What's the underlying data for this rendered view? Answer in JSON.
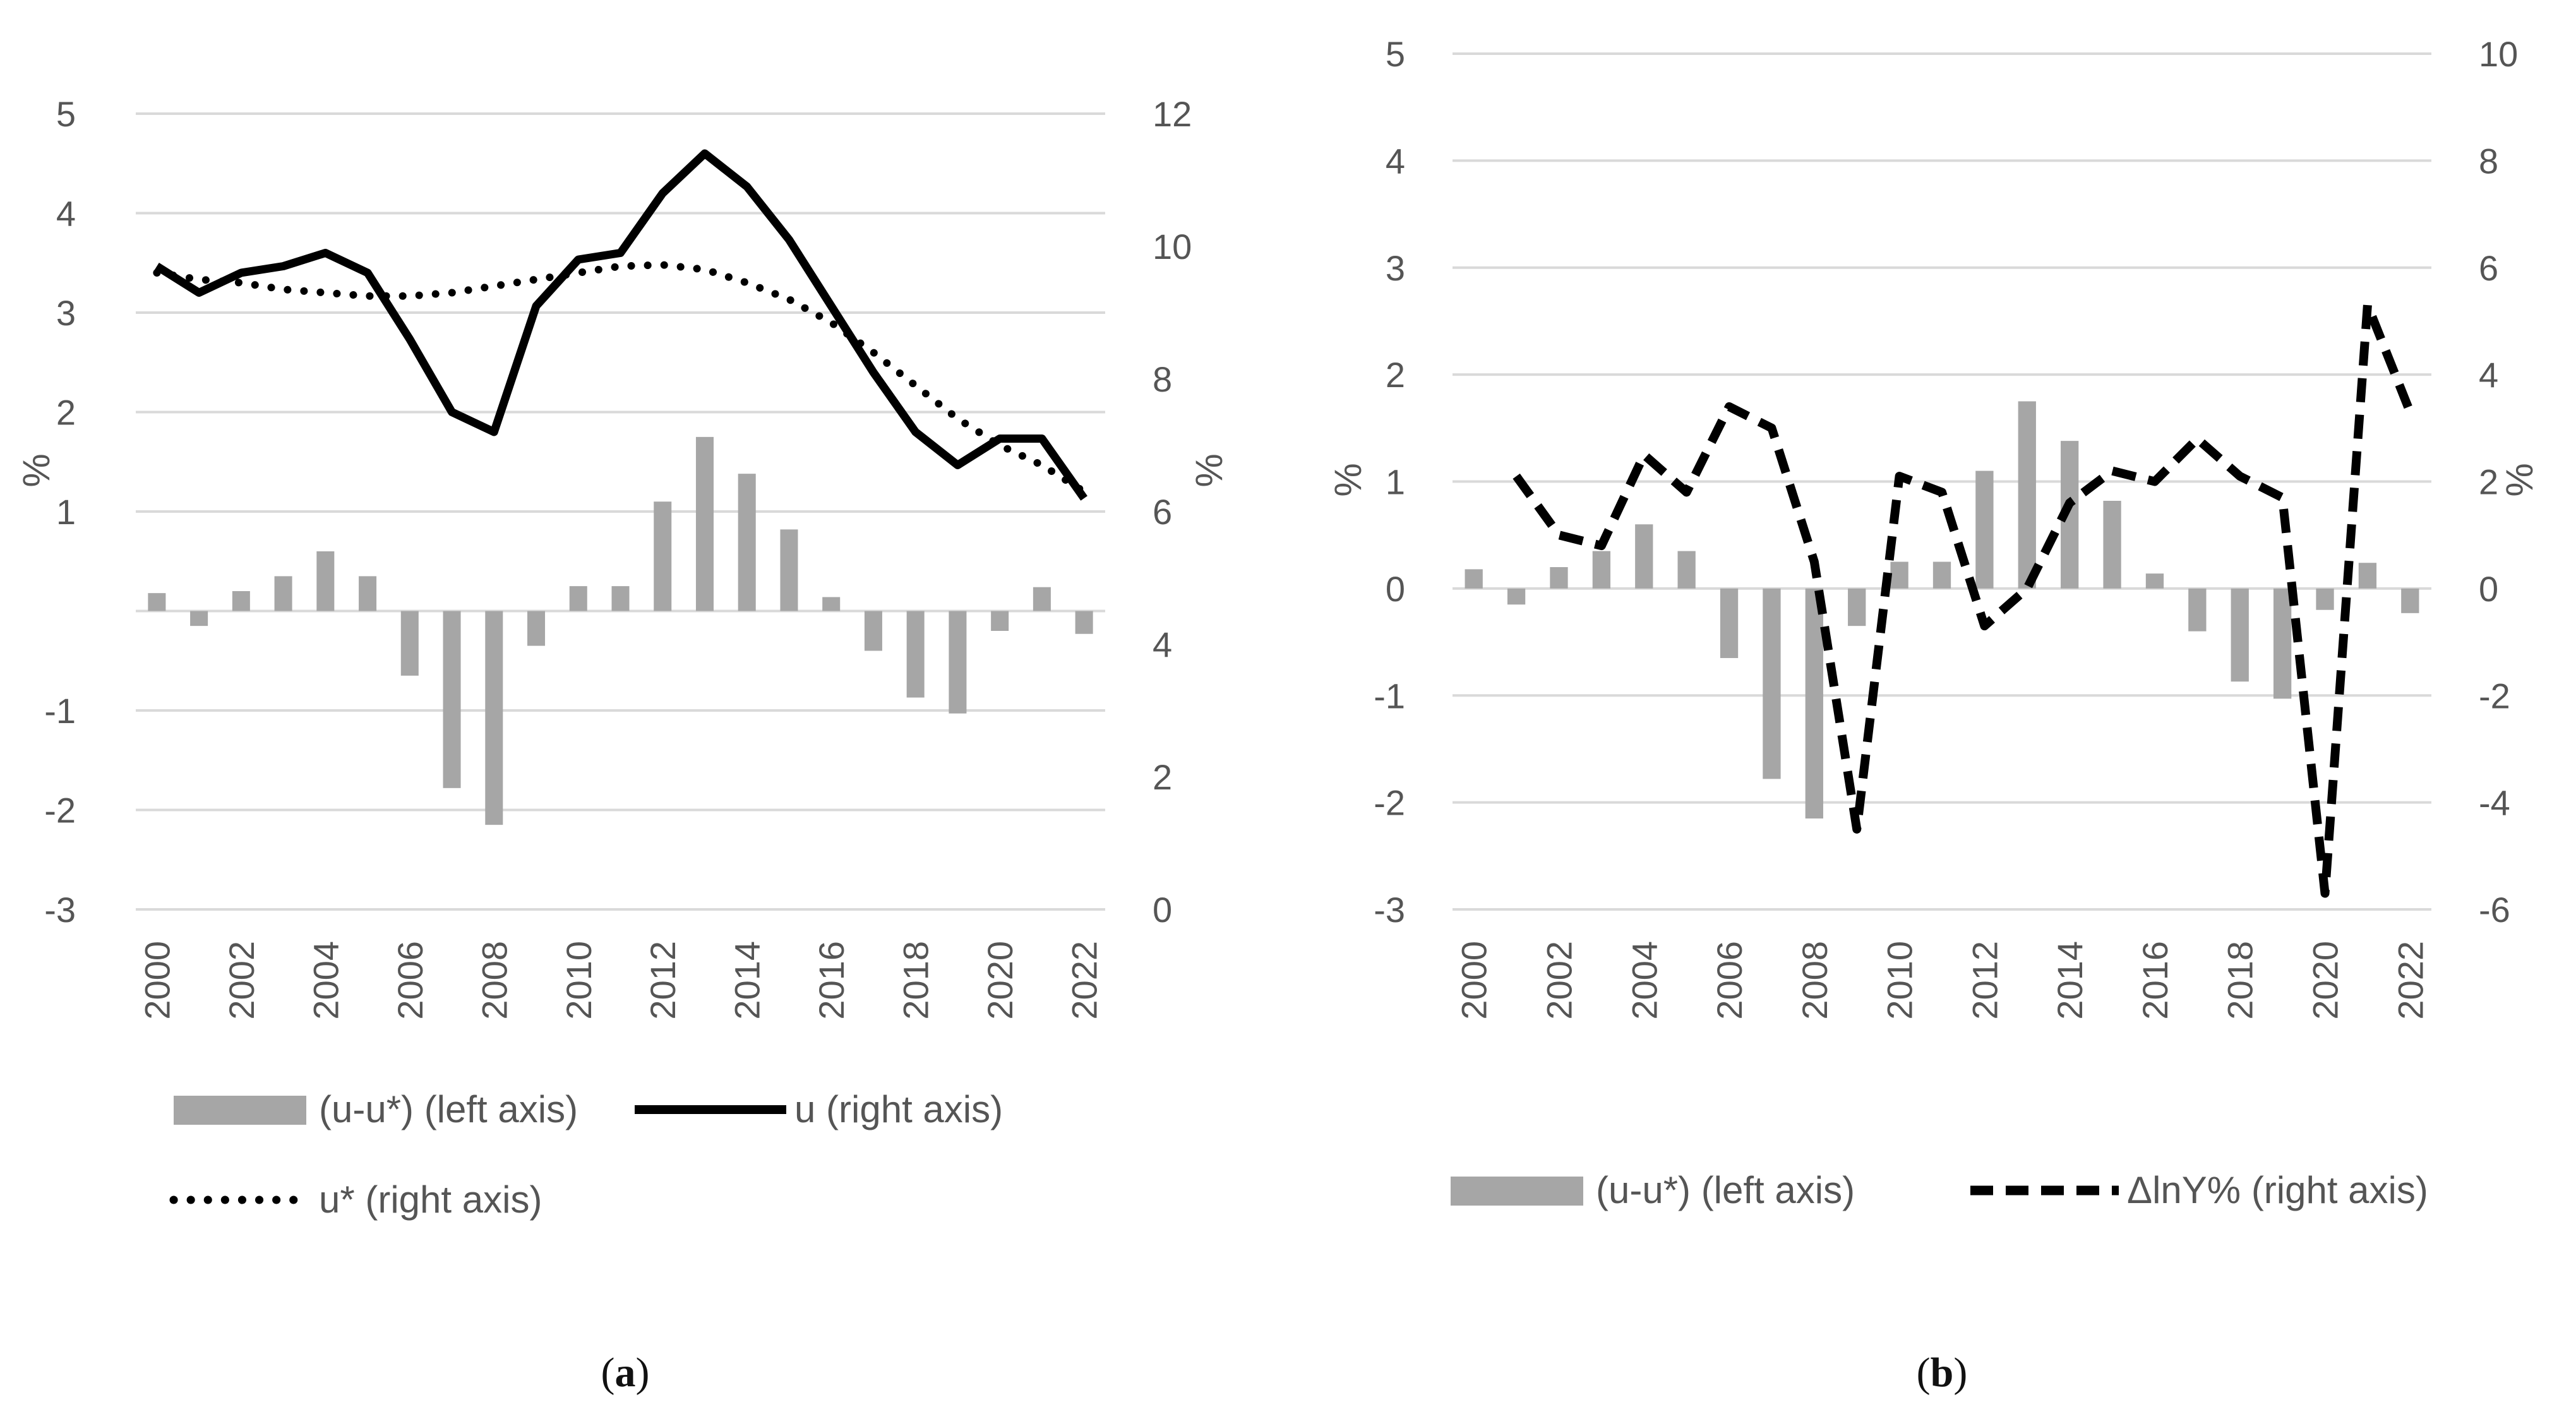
{
  "chart_data": [
    {
      "type": "bar+line",
      "panel_label": "a",
      "caption_open": "(",
      "caption_close": ")",
      "title": "",
      "left_axis": {
        "label": "%",
        "ylim": [
          -3,
          5
        ],
        "ticks": [
          -3,
          -2,
          -1,
          0,
          1,
          2,
          3,
          4,
          5
        ],
        "tick_labels": [
          "-3",
          "-2",
          "-1",
          "",
          "1",
          "2",
          "3",
          "4",
          "5"
        ]
      },
      "right_axis": {
        "label": "%",
        "ylim": [
          0,
          12
        ],
        "ticks": [
          0,
          2,
          4,
          6,
          8,
          10,
          12
        ],
        "tick_labels": [
          "0",
          "2",
          "4",
          "6",
          "8",
          "10",
          "12"
        ]
      },
      "x": [
        2000,
        2001,
        2002,
        2003,
        2004,
        2005,
        2006,
        2007,
        2008,
        2009,
        2010,
        2011,
        2012,
        2013,
        2014,
        2015,
        2016,
        2017,
        2018,
        2019,
        2020,
        2021,
        2022
      ],
      "x_tick_labels": [
        "2000",
        "2002",
        "2004",
        "2006",
        "2008",
        "2010",
        "2012",
        "2014",
        "2016",
        "2018",
        "2020",
        "2022"
      ],
      "series": [
        {
          "name": "(u-u*) (left axis)",
          "kind": "bar",
          "axis": "left",
          "color": "#a6a6a6",
          "values": [
            0.18,
            -0.15,
            0.2,
            0.35,
            0.6,
            0.35,
            -0.65,
            -1.78,
            -2.15,
            -0.35,
            0.25,
            0.25,
            1.1,
            1.75,
            1.38,
            0.82,
            0.14,
            -0.4,
            -0.87,
            -1.03,
            -0.2,
            0.24,
            -0.23
          ]
        },
        {
          "name": "u (right axis)",
          "kind": "line",
          "style": "solid",
          "axis": "right",
          "color": "#000000",
          "values": [
            9.7,
            9.3,
            9.6,
            9.7,
            9.9,
            9.6,
            8.6,
            7.5,
            7.2,
            9.1,
            9.8,
            9.9,
            10.8,
            11.4,
            10.9,
            10.1,
            9.1,
            8.1,
            7.2,
            6.7,
            7.1,
            7.1,
            6.2
          ]
        },
        {
          "name": "u* (right axis)",
          "kind": "line",
          "style": "dotted",
          "axis": "right",
          "color": "#000000",
          "values": [
            9.6,
            9.5,
            9.45,
            9.35,
            9.3,
            9.25,
            9.25,
            9.3,
            9.4,
            9.5,
            9.6,
            9.7,
            9.72,
            9.65,
            9.45,
            9.2,
            8.85,
            8.4,
            7.9,
            7.4,
            7.0,
            6.7,
            6.3
          ]
        }
      ],
      "legend": [
        "(u-u*) (left axis)",
        "u (right axis)",
        "u* (right axis)"
      ],
      "grid": true
    },
    {
      "type": "bar+line",
      "panel_label": "b",
      "caption_open": "(",
      "caption_close": ")",
      "title": "",
      "left_axis": {
        "label": "%",
        "ylim": [
          -3,
          5
        ],
        "ticks": [
          -3,
          -2,
          -1,
          0,
          1,
          2,
          3,
          4,
          5
        ],
        "tick_labels": [
          "-3",
          "-2",
          "-1",
          "0",
          "1",
          "2",
          "3",
          "4",
          "5"
        ]
      },
      "right_axis": {
        "label": "%",
        "ylim": [
          -6,
          10
        ],
        "ticks": [
          -6,
          -4,
          -2,
          0,
          2,
          4,
          6,
          8,
          10
        ],
        "tick_labels": [
          "-6",
          "-4",
          "-2",
          "0",
          "2",
          "4",
          "6",
          "8",
          "10"
        ]
      },
      "x": [
        2000,
        2001,
        2002,
        2003,
        2004,
        2005,
        2006,
        2007,
        2008,
        2009,
        2010,
        2011,
        2012,
        2013,
        2014,
        2015,
        2016,
        2017,
        2018,
        2019,
        2020,
        2021,
        2022
      ],
      "x_tick_labels": [
        "2000",
        "2002",
        "2004",
        "2006",
        "2008",
        "2010",
        "2012",
        "2014",
        "2016",
        "2018",
        "2020",
        "2022"
      ],
      "series": [
        {
          "name": "(u-u*) (left axis)",
          "kind": "bar",
          "axis": "left",
          "color": "#a6a6a6",
          "values": [
            0.18,
            -0.15,
            0.2,
            0.35,
            0.6,
            0.35,
            -0.65,
            -1.78,
            -2.15,
            -0.35,
            0.25,
            0.25,
            1.1,
            1.75,
            1.38,
            0.82,
            0.14,
            -0.4,
            -0.87,
            -1.03,
            -0.2,
            0.24,
            -0.23
          ]
        },
        {
          "name": "ΔlnY% (right axis)",
          "kind": "line",
          "style": "dashed",
          "axis": "right",
          "color": "#000000",
          "values": [
            null,
            2.1,
            1.0,
            0.8,
            2.5,
            1.8,
            3.4,
            3.0,
            0.5,
            -4.5,
            2.1,
            1.8,
            -0.7,
            0.0,
            1.6,
            2.2,
            2.0,
            2.8,
            2.1,
            1.7,
            -5.7,
            5.3,
            3.3
          ]
        }
      ],
      "legend": [
        "(u-u*) (left axis)",
        "ΔlnY% (right axis)"
      ],
      "grid": true
    }
  ]
}
